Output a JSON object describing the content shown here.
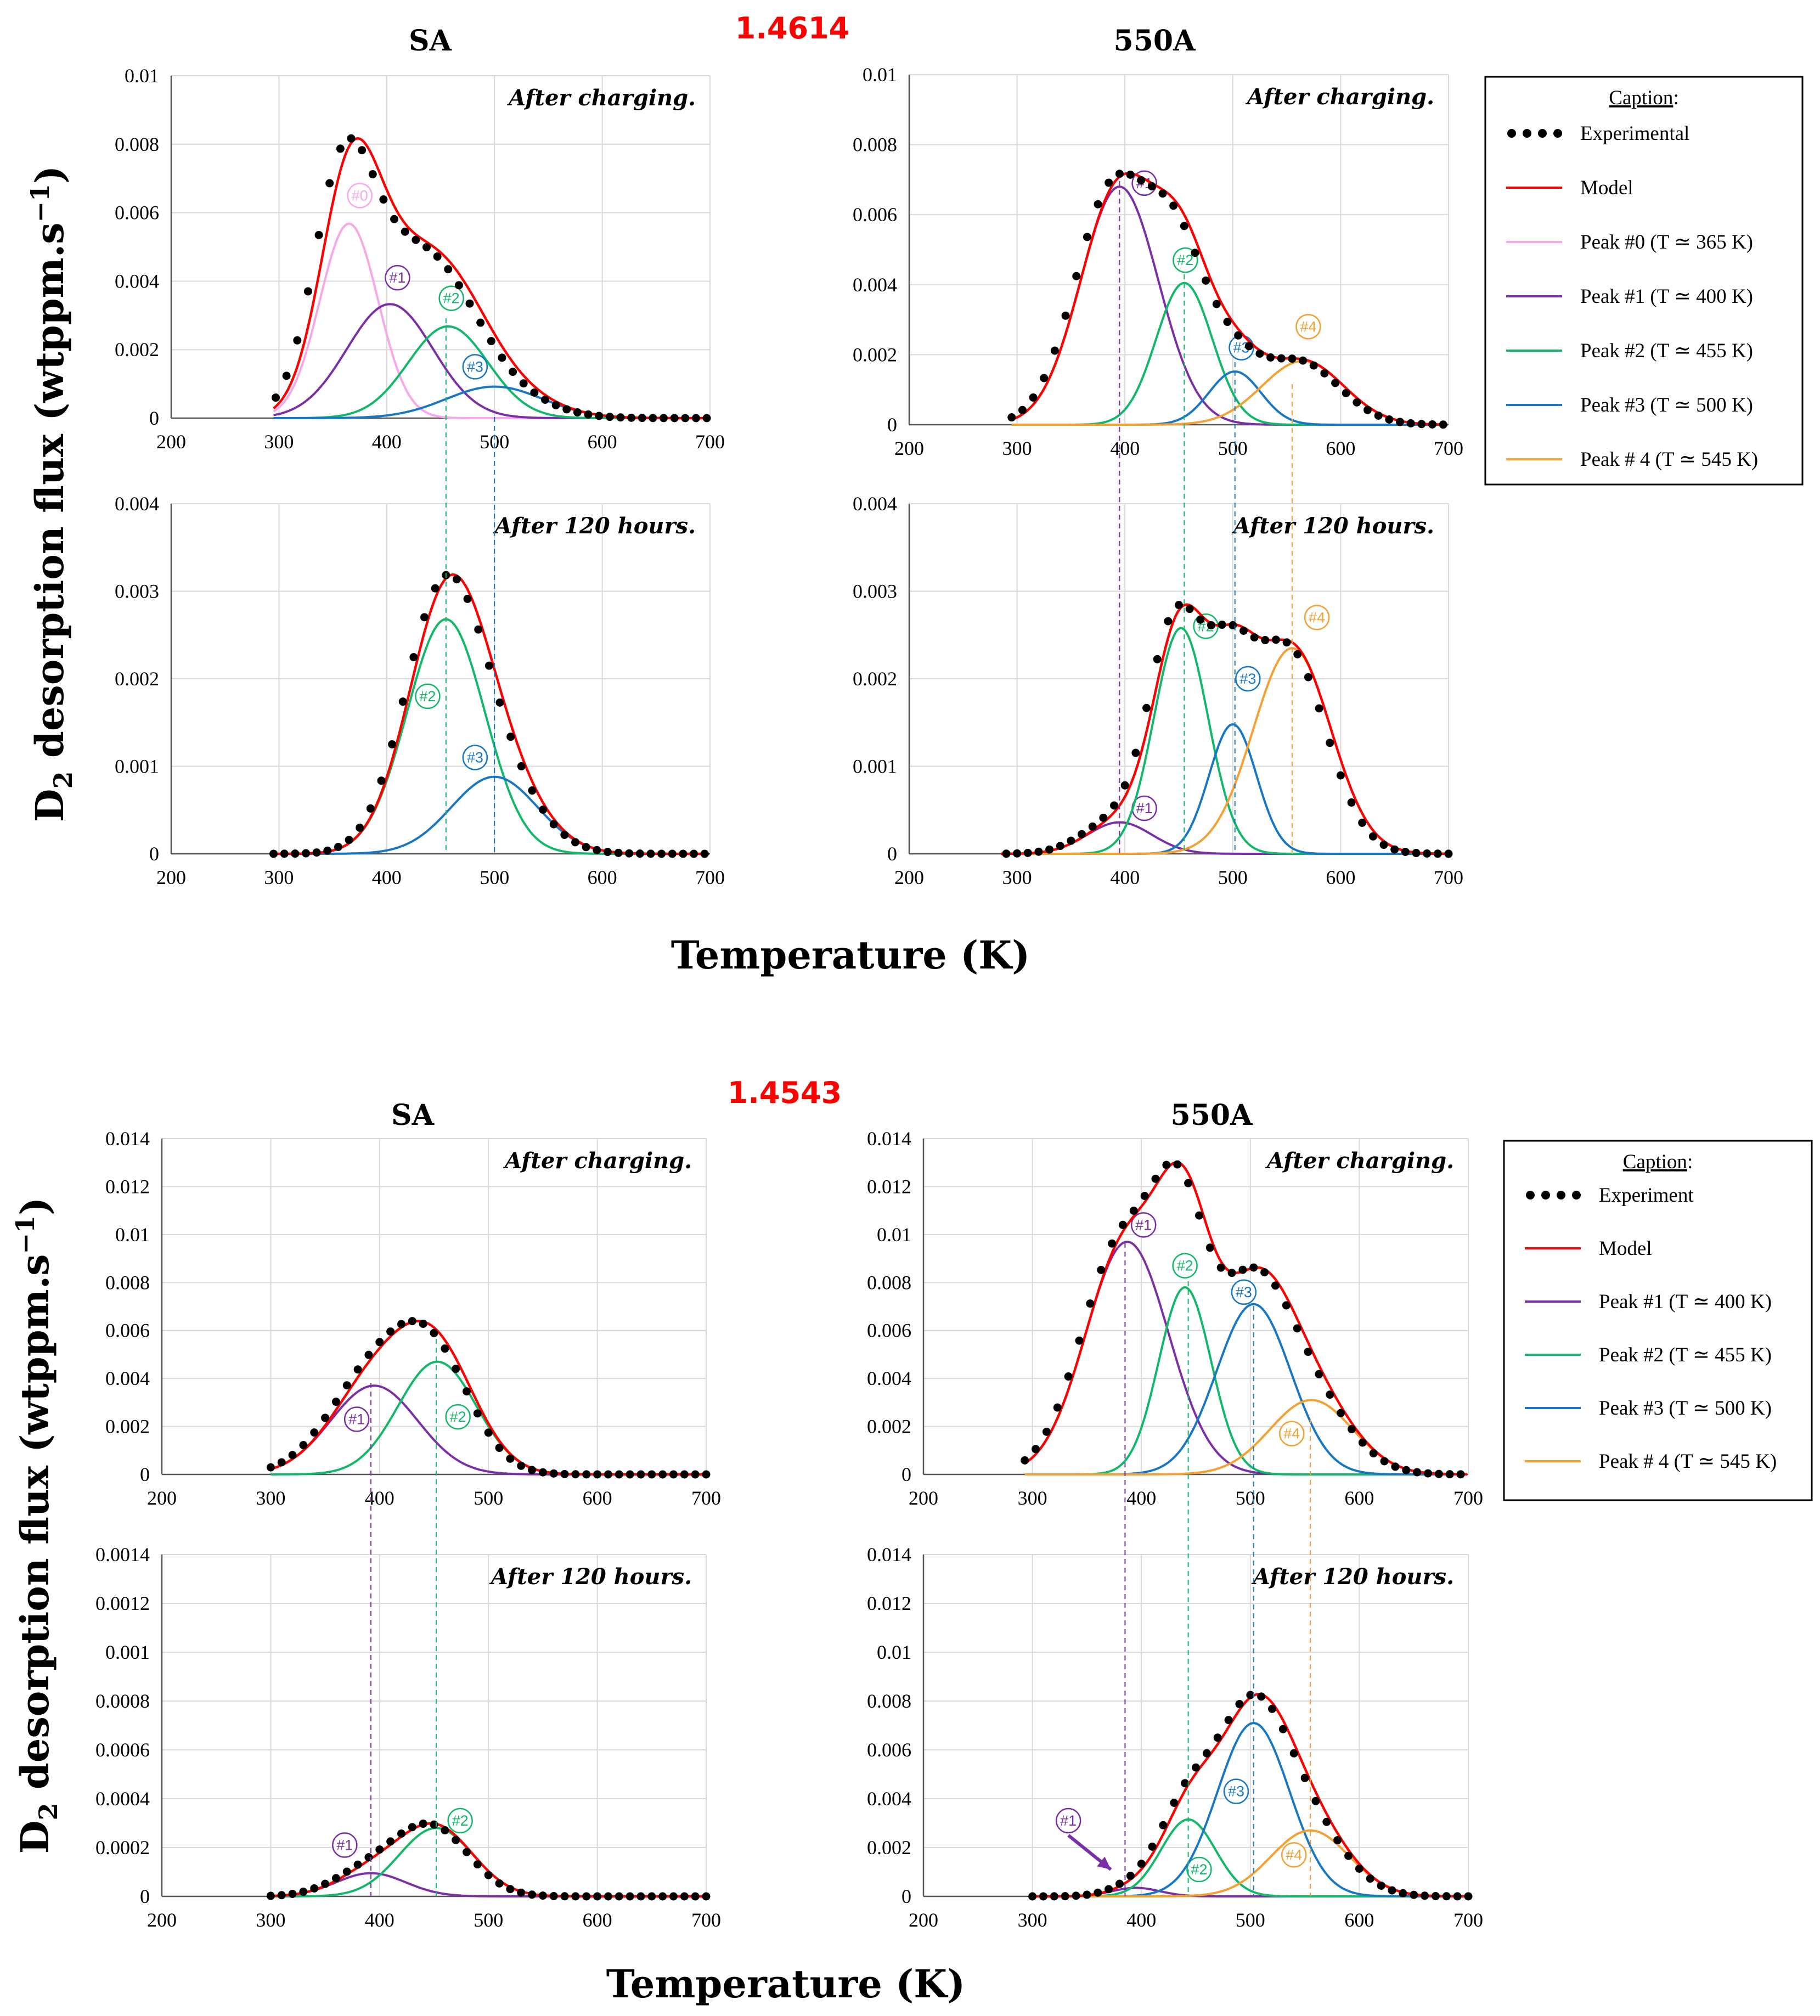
{
  "figure": {
    "y_axis_label_prefix": "D",
    "y_axis_label_sub": "2",
    "y_axis_label_top": "desorption flux (wtppm.s",
    "y_axis_label_bottom": "desorption flux  (wtppm.s",
    "y_axis_label_exp": "−1",
    "y_axis_label_end": ")",
    "x_axis_label": "Temperature (K)",
    "top_section_value": "1.4614",
    "bottom_section_value": "1.4543"
  },
  "legends": [
    {
      "title": "Caption",
      "title_suffix": ":",
      "items": [
        {
          "label": "Experimental",
          "kind": "dots"
        },
        {
          "label": "Model",
          "kind": "model"
        },
        {
          "label": "Peak #0 (T ≃ 365 K)",
          "kind": "p0"
        },
        {
          "label": "Peak #1 (T ≃ 400 K)",
          "kind": "p1"
        },
        {
          "label": "Peak #2 (T ≃ 455 K)",
          "kind": "p2"
        },
        {
          "label": "Peak #3 (T ≃ 500 K)",
          "kind": "p3"
        },
        {
          "label": "Peak # 4 (T ≃ 545 K)",
          "kind": "p4"
        }
      ]
    },
    {
      "title": "Caption",
      "title_suffix": ":",
      "items": [
        {
          "label": "Experiment",
          "kind": "dots"
        },
        {
          "label": "Model",
          "kind": "model"
        },
        {
          "label": "Peak #1 (T ≃ 400 K)",
          "kind": "p1"
        },
        {
          "label": "Peak #2 (T ≃ 455 K)",
          "kind": "p2"
        },
        {
          "label": "Peak #3 (T ≃ 500 K)",
          "kind": "p3"
        },
        {
          "label": "Peak # 4 (T ≃ 545 K)",
          "kind": "p4"
        }
      ]
    }
  ],
  "colors": {
    "experimental": "#000000",
    "model": "#ff0000",
    "p0": "#f8a8e8",
    "p1": "#7a2fa6",
    "p2": "#12b86a",
    "p3": "#1777c4",
    "p4": "#f5a033",
    "grid": "#d9d9d9",
    "title_red": "#ff0000"
  },
  "chart_data": [
    {
      "id": "sa_top_charging",
      "type": "line",
      "title": "SA",
      "annotation": "After charging.",
      "xlim": [
        200,
        700
      ],
      "ylim": [
        0,
        0.01
      ],
      "xticks": [
        "200",
        "300",
        "400",
        "500",
        "600",
        "700"
      ],
      "yticks": [
        "0",
        "0.002",
        "0.004",
        "0.006",
        "0.008",
        "0.01"
      ],
      "x_start": 295,
      "model_start": 295,
      "exp_x": [
        297,
        700
      ],
      "exp_step": 10,
      "peaks": [
        {
          "id": "p0",
          "label": "#0",
          "center": 365,
          "height": 0.00568,
          "width": 27,
          "label_at": [
            375,
            0.0065
          ]
        },
        {
          "id": "p1",
          "label": "#1",
          "center": 403,
          "height": 0.00333,
          "width": 40,
          "label_at": [
            410,
            0.0041
          ]
        },
        {
          "id": "p2",
          "label": "#2",
          "center": 457,
          "height": 0.00268,
          "width": 37,
          "label_at": [
            460,
            0.0035
          ]
        },
        {
          "id": "p3",
          "label": "#3",
          "center": 500,
          "height": 0.00092,
          "width": 45,
          "label_at": [
            482,
            0.0015
          ]
        }
      ],
      "exp_offset": 7
    },
    {
      "id": "550a_top_charging",
      "type": "line",
      "title": "550A",
      "annotation": "After charging.",
      "xlim": [
        200,
        700
      ],
      "ylim": [
        0,
        0.01
      ],
      "xticks": [
        "200",
        "300",
        "400",
        "500",
        "600",
        "700"
      ],
      "yticks": [
        "0",
        "0.002",
        "0.004",
        "0.006",
        "0.008",
        "0.01"
      ],
      "x_start": 295,
      "model_start": 295,
      "exp_x": [
        295,
        700
      ],
      "exp_step": 10,
      "peaks": [
        {
          "id": "p1",
          "label": "#1",
          "center": 395,
          "height": 0.0068,
          "width": 36,
          "label_at": [
            418,
            0.0069
          ]
        },
        {
          "id": "p2",
          "label": "#2",
          "center": 455,
          "height": 0.00405,
          "width": 26,
          "label_at": [
            456,
            0.0047
          ]
        },
        {
          "id": "p3",
          "label": "#3",
          "center": 502,
          "height": 0.00152,
          "width": 24,
          "label_at": [
            508,
            0.0022
          ]
        },
        {
          "id": "p4",
          "label": "#4",
          "center": 565,
          "height": 0.00182,
          "width": 38,
          "label_at": [
            570,
            0.0028
          ]
        }
      ],
      "exp_offset": 5
    },
    {
      "id": "sa_top_120h",
      "type": "line",
      "title": "",
      "annotation": "After 120 hours.",
      "xlim": [
        200,
        700
      ],
      "ylim": [
        0,
        0.004
      ],
      "xticks": [
        "200",
        "300",
        "400",
        "500",
        "600",
        "700"
      ],
      "yticks": [
        "0",
        "0.001",
        "0.002",
        "0.003",
        "0.004"
      ],
      "x_start": 295,
      "model_start": 295,
      "exp_x": [
        295,
        700
      ],
      "exp_step": 10,
      "peaks": [
        {
          "id": "p2",
          "label": "#2",
          "center": 455,
          "height": 0.00268,
          "width": 36,
          "label_at": [
            438,
            0.0018
          ]
        },
        {
          "id": "p3",
          "label": "#3",
          "center": 500,
          "height": 0.00088,
          "width": 40,
          "label_at": [
            482,
            0.0011
          ]
        }
      ],
      "exp_offset": 4
    },
    {
      "id": "550a_top_120h",
      "type": "line",
      "title": "",
      "annotation": "After 120 hours.",
      "xlim": [
        200,
        700
      ],
      "ylim": [
        0,
        0.004
      ],
      "xticks": [
        "200",
        "300",
        "400",
        "500",
        "600",
        "700"
      ],
      "yticks": [
        "0",
        "0.001",
        "0.002",
        "0.003",
        "0.004"
      ],
      "x_start": 285,
      "model_start": 285,
      "exp_x": [
        290,
        700
      ],
      "exp_step": 10,
      "peaks": [
        {
          "id": "p1",
          "label": "#1",
          "center": 395,
          "height": 0.00036,
          "width": 30,
          "label_at": [
            418,
            0.00052
          ]
        },
        {
          "id": "p2",
          "label": "#2",
          "center": 452,
          "height": 0.00258,
          "width": 25,
          "label_at": [
            475,
            0.0026
          ]
        },
        {
          "id": "p3",
          "label": "#3",
          "center": 500,
          "height": 0.00148,
          "width": 22,
          "label_at": [
            514,
            0.002
          ]
        },
        {
          "id": "p4",
          "label": "#4",
          "center": 555,
          "height": 0.00235,
          "width": 36,
          "label_at": [
            578,
            0.0027
          ]
        }
      ],
      "exp_offset": 5
    },
    {
      "id": "sa_bottom_charging",
      "type": "line",
      "title": "SA",
      "annotation": "After charging.",
      "xlim": [
        200,
        700
      ],
      "ylim": [
        0,
        0.014
      ],
      "xticks": [
        "200",
        "300",
        "400",
        "500",
        "600",
        "700"
      ],
      "yticks": [
        "0",
        "0.002",
        "0.004",
        "0.006",
        "0.008",
        "0.01",
        "0.012",
        "0.014"
      ],
      "x_start": 300,
      "model_start": 300,
      "exp_x": [
        300,
        700
      ],
      "exp_step": 10,
      "peaks": [
        {
          "id": "p1",
          "label": "#1",
          "center": 395,
          "height": 0.0037,
          "width": 40,
          "label_at": [
            379,
            0.0023
          ]
        },
        {
          "id": "p2",
          "label": "#2",
          "center": 453,
          "height": 0.0047,
          "width": 36,
          "label_at": [
            472,
            0.0024
          ]
        }
      ],
      "exp_offset": 5
    },
    {
      "id": "550a_bottom_charging",
      "type": "line",
      "title": "550A",
      "annotation": "After charging.",
      "xlim": [
        200,
        700
      ],
      "ylim": [
        0,
        0.014
      ],
      "xticks": [
        "200",
        "300",
        "400",
        "500",
        "600",
        "700"
      ],
      "yticks": [
        "0",
        "0.002",
        "0.004",
        "0.006",
        "0.008",
        "0.01",
        "0.012",
        "0.014"
      ],
      "x_start": 293,
      "model_start": 293,
      "exp_x": [
        293,
        700
      ],
      "exp_step": 10,
      "peaks": [
        {
          "id": "p1",
          "label": "#1",
          "center": 387,
          "height": 0.0097,
          "width": 38,
          "label_at": [
            402,
            0.0104
          ]
        },
        {
          "id": "p2",
          "label": "#2",
          "center": 440,
          "height": 0.0078,
          "width": 24,
          "label_at": [
            440,
            0.0087
          ]
        },
        {
          "id": "p3",
          "label": "#3",
          "center": 503,
          "height": 0.0071,
          "width": 34,
          "label_at": [
            494,
            0.0076
          ]
        },
        {
          "id": "p4",
          "label": "#4",
          "center": 556,
          "height": 0.0031,
          "width": 38,
          "label_at": [
            538,
            0.0017
          ]
        }
      ],
      "exp_offset": 4
    },
    {
      "id": "sa_bottom_120h",
      "type": "line",
      "title": "",
      "annotation": "After 120 hours.",
      "xlim": [
        200,
        700
      ],
      "ylim": [
        0,
        0.0014
      ],
      "xticks": [
        "200",
        "300",
        "400",
        "500",
        "600",
        "700"
      ],
      "yticks": [
        "0",
        "0.0002",
        "0.0004",
        "0.0006",
        "0.0008",
        "0.001",
        "0.0012",
        "0.0014"
      ],
      "x_start": 300,
      "model_start": 300,
      "exp_x": [
        300,
        700
      ],
      "exp_step": 10,
      "peaks": [
        {
          "id": "p1",
          "label": "#1",
          "center": 392,
          "height": 9.5e-05,
          "width": 32,
          "label_at": [
            368,
            0.00021
          ]
        },
        {
          "id": "p2",
          "label": "#2",
          "center": 452,
          "height": 0.00028,
          "width": 34,
          "label_at": [
            474,
            0.00031
          ]
        }
      ],
      "exp_offset": 4
    },
    {
      "id": "550a_bottom_120h",
      "type": "line",
      "title": "",
      "annotation": "After 120 hours.",
      "xlim": [
        200,
        700
      ],
      "ylim": [
        0,
        0.014
      ],
      "xticks": [
        "200",
        "300",
        "400",
        "500",
        "600",
        "700"
      ],
      "yticks": [
        "0",
        "0.002",
        "0.004",
        "0.006",
        "0.008",
        "0.01",
        "0.012",
        "0.014"
      ],
      "x_start": 300,
      "model_start": 300,
      "exp_x": [
        300,
        700
      ],
      "exp_step": 10,
      "peaks": [
        {
          "id": "p1",
          "label": "#1",
          "center": 395,
          "height": 0.00035,
          "width": 22,
          "label_at": [
            333,
            0.0031
          ]
        },
        {
          "id": "p2",
          "label": "#2",
          "center": 443,
          "height": 0.00315,
          "width": 25,
          "label_at": [
            453,
            0.0011
          ]
        },
        {
          "id": "p3",
          "label": "#3",
          "center": 503,
          "height": 0.0071,
          "width": 33,
          "label_at": [
            487,
            0.0043
          ]
        },
        {
          "id": "p4",
          "label": "#4",
          "center": 555,
          "height": 0.0027,
          "width": 36,
          "label_at": [
            540,
            0.0017
          ]
        }
      ],
      "arrow": {
        "from": [
          333,
          0.0025
        ],
        "to": [
          372,
          0.0011
        ]
      },
      "exp_offset": 4
    }
  ]
}
